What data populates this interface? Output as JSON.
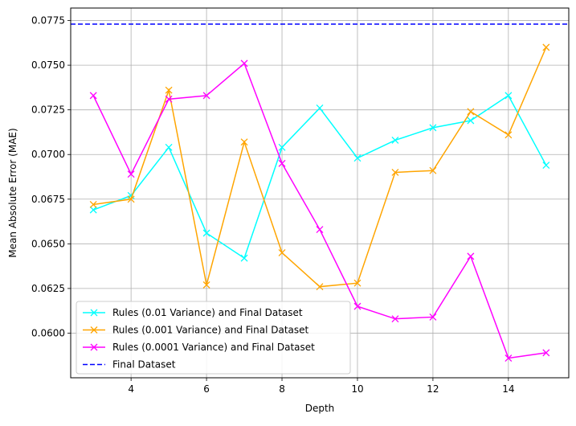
{
  "chart_data": {
    "type": "line",
    "title": "",
    "xlabel": "Depth",
    "ylabel": "Mean Absolute Error (MAE)",
    "xlim": [
      2.4,
      15.6
    ],
    "ylim": [
      0.0575,
      0.0782
    ],
    "xticks": [
      4,
      6,
      8,
      10,
      12,
      14
    ],
    "yticks": [
      0.06,
      0.0625,
      0.065,
      0.0675,
      0.07,
      0.0725,
      0.075,
      0.0775
    ],
    "ytick_labels": [
      "0.0600",
      "0.0625",
      "0.0650",
      "0.0675",
      "0.0700",
      "0.0725",
      "0.0750",
      "0.0775"
    ],
    "grid": true,
    "legend_position": "lower-left",
    "x": [
      3,
      4,
      5,
      6,
      7,
      8,
      9,
      10,
      11,
      12,
      13,
      14,
      15
    ],
    "series": [
      {
        "name": "Rules (0.01 Variance) and Final Dataset",
        "color": "#00ffff",
        "marker": "x",
        "values": [
          0.0669,
          0.0677,
          0.0704,
          0.0656,
          0.0642,
          0.0704,
          0.0726,
          0.0698,
          0.0708,
          0.0715,
          0.0719,
          0.0733,
          0.0694
        ]
      },
      {
        "name": "Rules (0.001 Variance) and Final Dataset",
        "color": "#ffa500",
        "marker": "x",
        "values": [
          0.0672,
          0.0675,
          0.0736,
          0.0627,
          0.0707,
          0.0645,
          0.0626,
          0.0628,
          0.069,
          0.0691,
          0.0724,
          0.0711,
          0.076
        ]
      },
      {
        "name": "Rules (0.0001 Variance) and Final Dataset",
        "color": "#ff00ff",
        "marker": "x",
        "values": [
          0.0733,
          0.0689,
          0.0731,
          0.0733,
          0.0751,
          0.0695,
          0.0658,
          0.0615,
          0.0608,
          0.0609,
          0.0643,
          0.0586,
          0.0589
        ]
      }
    ],
    "hline": {
      "name": "Final Dataset",
      "color": "#0000ff",
      "style": "dashed",
      "y": 0.0773
    }
  }
}
